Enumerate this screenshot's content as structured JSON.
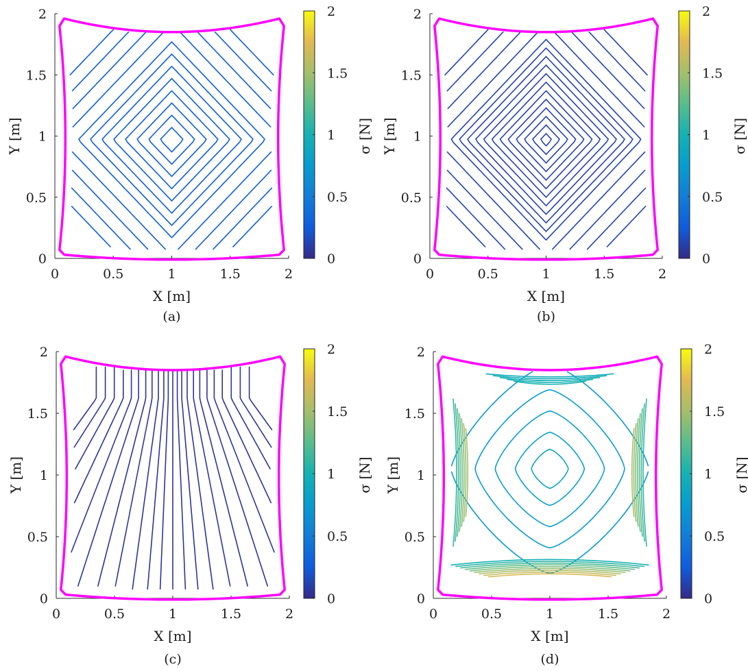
{
  "figure": {
    "captions": [
      "(a)",
      "(b)",
      "(c)",
      "(d)"
    ]
  },
  "chart_data": [
    {
      "type": "contour",
      "caption": "(a)",
      "xlabel": "X [m]",
      "ylabel": "Y  [m]",
      "colorbar_label": "σ [N]",
      "xlim": [
        0,
        2
      ],
      "ylim": [
        0,
        2
      ],
      "clim": [
        0,
        2
      ],
      "xticks": [
        "0",
        "0.5",
        "1",
        "1.5",
        "2"
      ],
      "yticks": [
        "0",
        "0.5",
        "1",
        "1.5",
        "2"
      ],
      "cticks": [
        "0",
        "0.5",
        "1",
        "1.5",
        "2"
      ],
      "colormap": "parula",
      "boundary_color": "#ff00ff",
      "field": "diamond",
      "center": [
        1.0,
        0.97
      ],
      "levels": [
        0.1,
        0.2,
        0.3,
        0.4,
        0.5,
        0.6,
        0.7,
        0.8,
        0.95,
        1.1,
        1.25,
        1.4
      ],
      "level_value": 0.25
    },
    {
      "type": "contour",
      "caption": "(b)",
      "xlabel": "X [m]",
      "ylabel": "Y  [m]",
      "colorbar_label": "σ [N]",
      "xlim": [
        0,
        2
      ],
      "ylim": [
        0,
        2
      ],
      "clim": [
        0,
        2
      ],
      "xticks": [
        "0",
        "0.5",
        "1",
        "1.5",
        "2"
      ],
      "yticks": [
        "0",
        "0.5",
        "1",
        "1.5",
        "2"
      ],
      "cticks": [
        "0",
        "0.5",
        "1",
        "1.5",
        "2"
      ],
      "colormap": "parula",
      "boundary_color": "#ff00ff",
      "field": "diamond",
      "center": [
        1.0,
        0.97
      ],
      "levels": [
        0.05,
        0.12,
        0.19,
        0.26,
        0.33,
        0.4,
        0.47,
        0.54,
        0.61,
        0.68,
        0.75,
        0.82,
        0.95,
        1.1,
        1.25,
        1.4
      ],
      "level_value": 0.12
    },
    {
      "type": "contour",
      "caption": "(c)",
      "xlabel": "X [m]",
      "ylabel": "Y  [m]",
      "colorbar_label": "σ [N]",
      "xlim": [
        0,
        2
      ],
      "ylim": [
        0,
        2
      ],
      "clim": [
        0,
        2
      ],
      "xticks": [
        "0",
        "0.5",
        "1",
        "1.5",
        "2"
      ],
      "yticks": [
        "0",
        "0.5",
        "1",
        "1.5",
        "2"
      ],
      "cticks": [
        "0",
        "0.5",
        "1",
        "1.5",
        "2"
      ],
      "colormap": "parula",
      "boundary_color": "#ff00ff",
      "field": "fan",
      "focus": [
        1.0,
        1.62
      ],
      "levels": [
        -0.85,
        -0.75,
        -0.65,
        -0.55,
        -0.46,
        -0.38,
        -0.3,
        -0.23,
        -0.16,
        -0.1,
        -0.05,
        0.0,
        0.05,
        0.1,
        0.16,
        0.23,
        0.3,
        0.38,
        0.46,
        0.55,
        0.65,
        0.75,
        0.85
      ],
      "level_value": 0.05
    },
    {
      "type": "contour",
      "caption": "(d)",
      "xlabel": "X [m]",
      "ylabel": "Y  [m]",
      "colorbar_label": "σ [N]",
      "xlim": [
        0,
        2
      ],
      "ylim": [
        0,
        2
      ],
      "clim": [
        0,
        2
      ],
      "xticks": [
        "0",
        "0.5",
        "1",
        "1.5",
        "2"
      ],
      "yticks": [
        "0",
        "0.5",
        "1",
        "1.5",
        "2"
      ],
      "cticks": [
        "0",
        "0.5",
        "1",
        "1.5",
        "2"
      ],
      "colormap": "parula",
      "boundary_color": "#ff00ff",
      "field": "rings",
      "center": [
        1.0,
        1.05
      ],
      "levels": [
        0.35,
        0.55,
        0.8,
        1.05,
        1.35
      ],
      "level_value": 0.85
    }
  ]
}
